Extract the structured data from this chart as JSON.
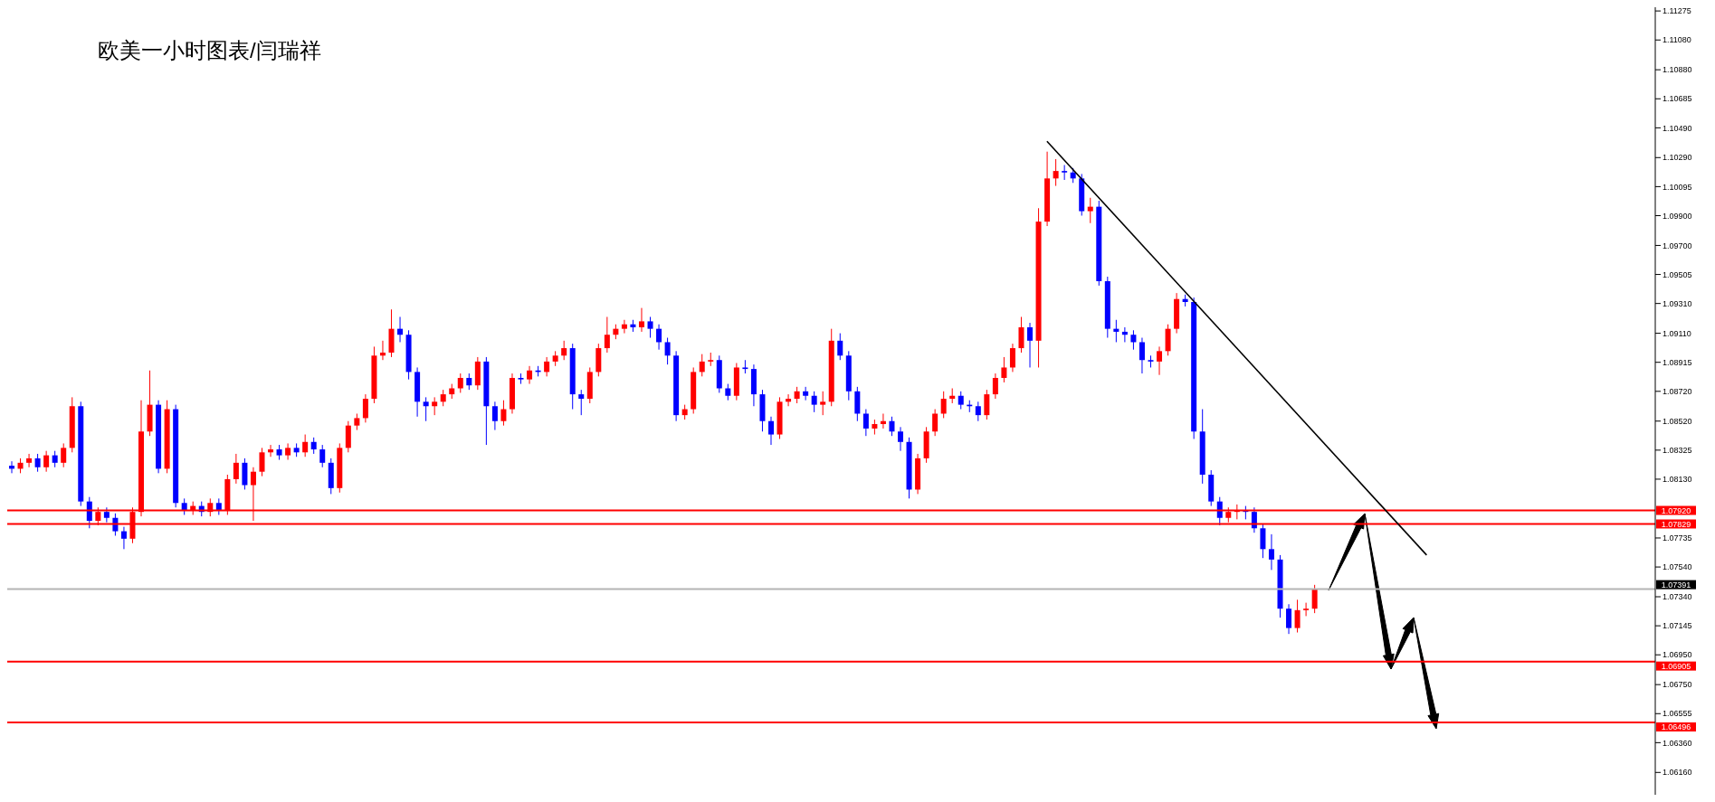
{
  "chart_data": {
    "type": "candlestick",
    "title": "欧美一小时图表/闫瑞祥",
    "categories": [
      null,
      null,
      null,
      null,
      null,
      null,
      null,
      null,
      null,
      null,
      null,
      null,
      null,
      null,
      null,
      null,
      null,
      null,
      null,
      null,
      null,
      null,
      null,
      null,
      null,
      null,
      null,
      null,
      null,
      null,
      null,
      null,
      null,
      null,
      null,
      null,
      null,
      null,
      null,
      null,
      null,
      null,
      null,
      null,
      null,
      null,
      null,
      null,
      null,
      null,
      null,
      null,
      null,
      null,
      null,
      null,
      null,
      null,
      null,
      null,
      null,
      null,
      null,
      null,
      null,
      null,
      null,
      null,
      null,
      null,
      null,
      null,
      null,
      null,
      null,
      null,
      null,
      null,
      null,
      null,
      null,
      null,
      null,
      null,
      null,
      null,
      null,
      null,
      null,
      null,
      null,
      null,
      null,
      null,
      null,
      null,
      null,
      null,
      null,
      null,
      null,
      null,
      null,
      null,
      null,
      null,
      null,
      null,
      null,
      null,
      null,
      null,
      null,
      null,
      null,
      null,
      null,
      null,
      null,
      null,
      null,
      null,
      null,
      null,
      null,
      null,
      null,
      null,
      null,
      null,
      null,
      null,
      null,
      null,
      null,
      null,
      null,
      null,
      null,
      null,
      null,
      null,
      null,
      null,
      null,
      null,
      null,
      null,
      null,
      null,
      null,
      null,
      null,
      null,
      null,
      null,
      null,
      null,
      null,
      null,
      null,
      null,
      null,
      null,
      null,
      null,
      null,
      null,
      null,
      null,
      null,
      null,
      null,
      null,
      null,
      null,
      null,
      null,
      null,
      null,
      null,
      null,
      null,
      null,
      null,
      null,
      null,
      null,
      null,
      null,
      null
    ],
    "ohlc": [
      [
        1.0822,
        1.0825,
        1.0817,
        1.082
      ],
      [
        1.082,
        1.0827,
        1.0817,
        1.0824
      ],
      [
        1.0824,
        1.083,
        1.0821,
        1.0827
      ],
      [
        1.0827,
        1.083,
        1.0818,
        1.0821
      ],
      [
        1.0821,
        1.0832,
        1.0818,
        1.0829
      ],
      [
        1.0829,
        1.0832,
        1.0821,
        1.0824
      ],
      [
        1.0824,
        1.0837,
        1.0821,
        1.0834
      ],
      [
        1.0834,
        1.0868,
        1.0831,
        1.0862
      ],
      [
        1.0862,
        1.0865,
        1.0795,
        1.0798
      ],
      [
        1.0798,
        1.0801,
        1.078,
        1.0785
      ],
      [
        1.0785,
        1.0794,
        1.0782,
        1.0791
      ],
      [
        1.0791,
        1.0794,
        1.0784,
        1.0787
      ],
      [
        1.0787,
        1.079,
        1.0775,
        1.0778
      ],
      [
        1.0778,
        1.0781,
        1.0766,
        1.0773
      ],
      [
        1.0773,
        1.0794,
        1.077,
        1.0791
      ],
      [
        1.0791,
        1.0866,
        1.0788,
        1.0845
      ],
      [
        1.0845,
        1.0886,
        1.0842,
        1.0863
      ],
      [
        1.0863,
        1.0866,
        1.0817,
        1.082
      ],
      [
        1.082,
        1.0866,
        1.0817,
        1.086
      ],
      [
        1.086,
        1.0863,
        1.0794,
        1.0797
      ],
      [
        1.0797,
        1.08,
        1.0789,
        1.0792
      ],
      [
        1.0792,
        1.0798,
        1.0789,
        1.0795
      ],
      [
        1.0795,
        1.0798,
        1.0788,
        1.0791
      ],
      [
        1.0791,
        1.08,
        1.0788,
        1.0797
      ],
      [
        1.0797,
        1.08,
        1.0789,
        1.0792
      ],
      [
        1.0792,
        1.0816,
        1.0789,
        1.0813
      ],
      [
        1.0813,
        1.083,
        1.081,
        1.0824
      ],
      [
        1.0824,
        1.0827,
        1.0806,
        1.0809
      ],
      [
        1.0809,
        1.0821,
        1.0785,
        1.0818
      ],
      [
        1.0818,
        1.0834,
        1.0815,
        1.0831
      ],
      [
        1.0831,
        1.0836,
        1.0828,
        1.0833
      ],
      [
        1.0833,
        1.0836,
        1.0826,
        1.0829
      ],
      [
        1.0829,
        1.0837,
        1.0826,
        1.0834
      ],
      [
        1.0834,
        1.0837,
        1.0828,
        1.0831
      ],
      [
        1.0831,
        1.0843,
        1.0828,
        1.0838
      ],
      [
        1.0838,
        1.0841,
        1.083,
        1.0833
      ],
      [
        1.0833,
        1.0836,
        1.0821,
        1.0824
      ],
      [
        1.0824,
        1.0827,
        1.0803,
        1.0807
      ],
      [
        1.0807,
        1.0837,
        1.0804,
        1.0834
      ],
      [
        1.0834,
        1.0852,
        1.0831,
        1.0849
      ],
      [
        1.0849,
        1.0857,
        1.0846,
        1.0854
      ],
      [
        1.0854,
        1.087,
        1.0851,
        1.0867
      ],
      [
        1.0867,
        1.0902,
        1.0864,
        1.0896
      ],
      [
        1.0896,
        1.0906,
        1.0893,
        1.0898
      ],
      [
        1.0898,
        1.0927,
        1.0895,
        1.0914
      ],
      [
        1.0914,
        1.0922,
        1.0905,
        1.091
      ],
      [
        1.091,
        1.0913,
        1.088,
        1.0885
      ],
      [
        1.0885,
        1.0888,
        1.0855,
        1.0865
      ],
      [
        1.0865,
        1.0868,
        1.0852,
        1.0862
      ],
      [
        1.0862,
        1.0868,
        1.0856,
        1.0865
      ],
      [
        1.0865,
        1.0873,
        1.0862,
        1.087
      ],
      [
        1.087,
        1.0877,
        1.0867,
        1.0874
      ],
      [
        1.0874,
        1.0884,
        1.0871,
        1.0881
      ],
      [
        1.0881,
        1.0884,
        1.0873,
        1.0876
      ],
      [
        1.0876,
        1.0895,
        1.0873,
        1.0892
      ],
      [
        1.0892,
        1.0895,
        1.0836,
        1.0862
      ],
      [
        1.0862,
        1.0865,
        1.0846,
        1.0852
      ],
      [
        1.0852,
        1.0866,
        1.0849,
        1.086
      ],
      [
        1.086,
        1.0884,
        1.0857,
        1.0881
      ],
      [
        1.0881,
        1.0884,
        1.0877,
        1.088
      ],
      [
        1.088,
        1.0889,
        1.0877,
        1.0886
      ],
      [
        1.0886,
        1.0889,
        1.0882,
        1.0885
      ],
      [
        1.0885,
        1.0895,
        1.0882,
        1.0892
      ],
      [
        1.0892,
        1.0899,
        1.0889,
        1.0896
      ],
      [
        1.0896,
        1.0906,
        1.0893,
        1.0901
      ],
      [
        1.0901,
        1.0904,
        1.086,
        1.087
      ],
      [
        1.087,
        1.0873,
        1.0856,
        1.0867
      ],
      [
        1.0867,
        1.0888,
        1.0864,
        1.0885
      ],
      [
        1.0885,
        1.0904,
        1.0882,
        1.0901
      ],
      [
        1.0901,
        1.0922,
        1.0898,
        1.091
      ],
      [
        1.091,
        1.0917,
        1.0907,
        1.0914
      ],
      [
        1.0914,
        1.092,
        1.0911,
        1.0917
      ],
      [
        1.0917,
        1.092,
        1.0912,
        1.0915
      ],
      [
        1.0915,
        1.0928,
        1.0912,
        1.0919
      ],
      [
        1.0919,
        1.0922,
        1.0908,
        1.0914
      ],
      [
        1.0914,
        1.0917,
        1.09,
        1.0905
      ],
      [
        1.0905,
        1.0908,
        1.089,
        1.0896
      ],
      [
        1.0896,
        1.0899,
        1.0852,
        1.0856
      ],
      [
        1.0856,
        1.0863,
        1.0853,
        1.086
      ],
      [
        1.086,
        1.0888,
        1.0857,
        1.0885
      ],
      [
        1.0885,
        1.0897,
        1.0882,
        1.0892
      ],
      [
        1.0892,
        1.0898,
        1.0889,
        1.0893
      ],
      [
        1.0893,
        1.0896,
        1.0871,
        1.0874
      ],
      [
        1.0874,
        1.0877,
        1.0866,
        1.0869
      ],
      [
        1.0869,
        1.0891,
        1.0866,
        1.0888
      ],
      [
        1.0888,
        1.0893,
        1.0884,
        1.0887
      ],
      [
        1.0887,
        1.089,
        1.0862,
        1.087
      ],
      [
        1.087,
        1.0873,
        1.0845,
        1.0852
      ],
      [
        1.0852,
        1.0855,
        1.0836,
        1.0843
      ],
      [
        1.0843,
        1.0868,
        1.084,
        1.0865
      ],
      [
        1.0865,
        1.087,
        1.0862,
        1.0867
      ],
      [
        1.0867,
        1.0875,
        1.0864,
        1.0872
      ],
      [
        1.0872,
        1.0875,
        1.0866,
        1.0869
      ],
      [
        1.0869,
        1.0872,
        1.0858,
        1.0863
      ],
      [
        1.0863,
        1.0872,
        1.0856,
        1.0865
      ],
      [
        1.0865,
        1.0914,
        1.0862,
        1.0906
      ],
      [
        1.0906,
        1.0911,
        1.0893,
        1.0896
      ],
      [
        1.0896,
        1.0899,
        1.0866,
        1.0872
      ],
      [
        1.0872,
        1.0875,
        1.0852,
        1.0857
      ],
      [
        1.0857,
        1.086,
        1.0842,
        1.0847
      ],
      [
        1.0847,
        1.0853,
        1.0843,
        1.085
      ],
      [
        1.085,
        1.0857,
        1.0847,
        1.0852
      ],
      [
        1.0852,
        1.0855,
        1.0842,
        1.0845
      ],
      [
        1.0845,
        1.0848,
        1.0832,
        1.0838
      ],
      [
        1.0838,
        1.0841,
        1.08,
        1.0806
      ],
      [
        1.0806,
        1.083,
        1.0803,
        1.0827
      ],
      [
        1.0827,
        1.0848,
        1.0824,
        1.0845
      ],
      [
        1.0845,
        1.086,
        1.0842,
        1.0857
      ],
      [
        1.0857,
        1.0872,
        1.0854,
        1.0867
      ],
      [
        1.0867,
        1.0874,
        1.0864,
        1.0869
      ],
      [
        1.0869,
        1.0872,
        1.086,
        1.0863
      ],
      [
        1.0863,
        1.0866,
        1.0858,
        1.0862
      ],
      [
        1.0862,
        1.0865,
        1.0852,
        1.0856
      ],
      [
        1.0856,
        1.0873,
        1.0853,
        1.087
      ],
      [
        1.087,
        1.0884,
        1.0867,
        1.0881
      ],
      [
        1.0881,
        1.0895,
        1.0878,
        1.0888
      ],
      [
        1.0888,
        1.0904,
        1.0885,
        1.0901
      ],
      [
        1.0901,
        1.0922,
        1.0898,
        1.0915
      ],
      [
        1.0915,
        1.0918,
        1.0888,
        1.0906
      ],
      [
        1.0906,
        1.0995,
        1.0888,
        1.0986
      ],
      [
        1.0986,
        1.1033,
        1.0983,
        1.1015
      ],
      [
        1.1015,
        1.1028,
        1.101,
        1.102
      ],
      [
        1.102,
        1.1024,
        1.1014,
        1.1019
      ],
      [
        1.1019,
        1.1022,
        1.1012,
        1.1015
      ],
      [
        1.1015,
        1.1018,
        1.099,
        1.0993
      ],
      [
        1.0993,
        1.1002,
        1.0985,
        1.0996
      ],
      [
        1.0996,
        1.1,
        1.0943,
        1.0946
      ],
      [
        1.0946,
        1.0949,
        1.0908,
        1.0914
      ],
      [
        1.0914,
        1.092,
        1.0905,
        1.0912
      ],
      [
        1.0912,
        1.0915,
        1.0905,
        1.091
      ],
      [
        1.091,
        1.0913,
        1.09,
        1.0905
      ],
      [
        1.0905,
        1.0908,
        1.0884,
        1.0893
      ],
      [
        1.0893,
        1.0896,
        1.0888,
        1.0892
      ],
      [
        1.0892,
        1.0902,
        1.0883,
        1.0899
      ],
      [
        1.0899,
        1.0917,
        1.0896,
        1.0914
      ],
      [
        1.0914,
        1.0938,
        1.0911,
        1.0934
      ],
      [
        1.0934,
        1.0937,
        1.0929,
        1.0932
      ],
      [
        1.0932,
        1.0935,
        1.084,
        1.0845
      ],
      [
        1.0845,
        1.086,
        1.081,
        1.0816
      ],
      [
        1.0816,
        1.0819,
        1.0795,
        1.0798
      ],
      [
        1.0798,
        1.0801,
        1.0782,
        1.0787
      ],
      [
        1.0787,
        1.0794,
        1.0784,
        1.0791
      ],
      [
        1.0791,
        1.0796,
        1.0786,
        1.0792
      ],
      [
        1.0792,
        1.0795,
        1.0786,
        1.0791
      ],
      [
        1.0791,
        1.0794,
        1.0777,
        1.078
      ],
      [
        1.078,
        1.0783,
        1.076,
        1.0766
      ],
      [
        1.0766,
        1.0776,
        1.0752,
        1.0759
      ],
      [
        1.0759,
        1.0762,
        1.072,
        1.0726
      ],
      [
        1.0726,
        1.0729,
        1.0709,
        1.0713
      ],
      [
        1.0713,
        1.0732,
        1.071,
        1.0725
      ],
      [
        1.0725,
        1.073,
        1.0721,
        1.0726
      ],
      [
        1.0726,
        1.0742,
        1.0723,
        1.0739
      ],
      null,
      null,
      null,
      null,
      null,
      null,
      null,
      null,
      null,
      null,
      null,
      null,
      null,
      null,
      null,
      null,
      null,
      null,
      null,
      null,
      null,
      null,
      null,
      null,
      null,
      null,
      null,
      null,
      null,
      null,
      null,
      null,
      null,
      null,
      null,
      null,
      null,
      null,
      null
    ],
    "colors": [
      "#0000ff",
      "#ff0000",
      "#ff0000",
      "#0000ff",
      "#ff0000",
      "#0000ff",
      "#ff0000",
      "#ff0000",
      "#0000ff",
      "#0000ff",
      "#ff0000",
      "#0000ff",
      "#0000ff",
      "#0000ff",
      "#ff0000",
      "#ff0000",
      "#ff0000",
      "#0000ff",
      "#ff0000",
      "#0000ff",
      "#0000ff",
      "#ff0000",
      "#0000ff",
      "#ff0000",
      "#0000ff",
      "#ff0000",
      "#ff0000",
      "#0000ff",
      "#ff0000",
      "#ff0000",
      "#ff0000",
      "#0000ff",
      "#ff0000",
      "#0000ff",
      "#ff0000",
      "#0000ff",
      "#0000ff",
      "#0000ff",
      "#ff0000",
      "#ff0000",
      "#ff0000",
      "#ff0000",
      "#ff0000",
      "#ff0000",
      "#ff0000",
      "#0000ff",
      "#0000ff",
      "#0000ff",
      "#0000ff",
      "#ff0000",
      "#ff0000",
      "#ff0000",
      "#ff0000",
      "#0000ff",
      "#ff0000",
      "#0000ff",
      "#0000ff",
      "#ff0000",
      "#ff0000",
      "#0000ff",
      "#ff0000",
      "#0000ff",
      "#ff0000",
      "#ff0000",
      "#ff0000",
      "#0000ff",
      "#0000ff",
      "#ff0000",
      "#ff0000",
      "#ff0000",
      "#ff0000",
      "#ff0000",
      "#0000ff",
      "#ff0000",
      "#0000ff",
      "#0000ff",
      "#0000ff",
      "#0000ff",
      "#ff0000",
      "#ff0000",
      "#ff0000",
      "#ff0000",
      "#0000ff",
      "#0000ff",
      "#ff0000",
      "#0000ff",
      "#0000ff",
      "#0000ff",
      "#0000ff",
      "#ff0000",
      "#ff0000",
      "#ff0000",
      "#0000ff",
      "#0000ff",
      "#ff0000",
      "#ff0000",
      "#0000ff",
      "#0000ff",
      "#0000ff",
      "#0000ff",
      "#ff0000",
      "#ff0000",
      "#0000ff",
      "#0000ff",
      "#0000ff",
      "#ff0000",
      "#ff0000",
      "#ff0000",
      "#ff0000",
      "#ff0000",
      "#0000ff",
      "#0000ff",
      "#0000ff",
      "#ff0000",
      "#ff0000",
      "#ff0000",
      "#ff0000",
      "#ff0000",
      "#0000ff",
      "#ff0000",
      "#ff0000",
      "#ff0000",
      "#0000ff",
      "#0000ff",
      "#0000ff",
      "#ff0000",
      "#0000ff",
      "#0000ff",
      "#0000ff",
      "#0000ff",
      "#0000ff",
      "#0000ff",
      "#0000ff",
      "#ff0000",
      "#ff0000",
      "#ff0000",
      "#0000ff",
      "#0000ff",
      "#0000ff",
      "#0000ff",
      "#0000ff",
      "#ff0000",
      "#ff0000",
      "#0000ff",
      "#0000ff",
      "#0000ff",
      "#0000ff",
      "#0000ff",
      "#0000ff",
      "#ff0000",
      "#ff0000",
      "#ff0000",
      null,
      null,
      null,
      null,
      null,
      null,
      null,
      null,
      null,
      null,
      null,
      null,
      null,
      null,
      null,
      null,
      null,
      null,
      null,
      null,
      null,
      null,
      null,
      null,
      null,
      null,
      null,
      null,
      null,
      null,
      null,
      null,
      null,
      null,
      null,
      null,
      null,
      null,
      null
    ],
    "series": [
      {
        "type": "line",
        "color": "#000000",
        "values": [
          null,
          null,
          null,
          null,
          null,
          null,
          null,
          null,
          null,
          null,
          null,
          null,
          null,
          null,
          null,
          null,
          null,
          null,
          null,
          null,
          null,
          null,
          null,
          null,
          null,
          null,
          null,
          null,
          null,
          null,
          null,
          null,
          null,
          null,
          null,
          null,
          null,
          null,
          null,
          null,
          null,
          null,
          null,
          null,
          null,
          null,
          null,
          null,
          null,
          null,
          null,
          null,
          null,
          null,
          null,
          null,
          null,
          null,
          null,
          null,
          null,
          null,
          null,
          null,
          null,
          null,
          null,
          null,
          null,
          null,
          null,
          null,
          null,
          null,
          null,
          null,
          null,
          null,
          null,
          null,
          null,
          null,
          null,
          null,
          null,
          null,
          null,
          null,
          null,
          null,
          null,
          null,
          null,
          null,
          null,
          null,
          null,
          null,
          null,
          null,
          null,
          null,
          null,
          null,
          null,
          null,
          null,
          null,
          null,
          null,
          null,
          null,
          null,
          null,
          null,
          null,
          null,
          null,
          null,
          null,
          1.104,
          null,
          null,
          null,
          null,
          null,
          null,
          null,
          null,
          null,
          null,
          null,
          null,
          null,
          null,
          null,
          null,
          null,
          null,
          null,
          null,
          null,
          null,
          null,
          null,
          null,
          null,
          null,
          null,
          null,
          null,
          null,
          null,
          null,
          null,
          null,
          null,
          null,
          null,
          null,
          null,
          null,
          null,
          null,
          1.0762,
          null,
          null,
          null,
          null,
          null,
          null,
          null,
          null,
          null,
          null,
          null,
          null,
          null,
          null,
          null,
          null,
          null,
          null,
          null,
          null,
          null,
          null,
          null,
          null,
          null,
          null
        ]
      }
    ],
    "ylim": [
      1.0601,
      1.113
    ],
    "yticks": [
      1.11275,
      {
        "value": 1.1108,
        "label": "1.11080"
      },
      {
        "value": 1.1088,
        "label": "1.10880"
      },
      1.10685,
      {
        "value": 1.1049,
        "label": "1.10490"
      },
      {
        "value": 1.1029,
        "label": "1.10290"
      },
      1.10095,
      {
        "value": 1.099,
        "label": "1.09900"
      },
      {
        "value": 1.097,
        "label": "1.09700"
      },
      1.09505,
      {
        "value": 1.0931,
        "label": "1.09310"
      },
      {
        "value": 1.0911,
        "label": "1.09110"
      },
      1.08915,
      {
        "value": 1.0872,
        "label": "1.08720"
      },
      {
        "value": 1.0852,
        "label": "1.08520"
      },
      1.08325,
      {
        "value": 1.0813,
        "label": "1.08130"
      },
      1.07735,
      {
        "value": 1.0754,
        "label": "1.07540"
      },
      {
        "value": 1.0734,
        "label": "1.07340"
      },
      1.07145,
      {
        "value": 1.0695,
        "label": "1.06950"
      },
      {
        "value": 1.0675,
        "label": "1.06750"
      },
      1.06555,
      {
        "value": 1.0636,
        "label": "1.06360"
      },
      {
        "value": 1.0616,
        "label": "1.06160"
      }
    ],
    "ref_lines": [
      {
        "axis": "y",
        "value": 1.0792,
        "label": "1.07920",
        "color": "#ff0000"
      },
      {
        "axis": "y",
        "value": 1.07829,
        "label": "1.07829",
        "color": "#ff0000"
      },
      {
        "axis": "y",
        "value": 1.07391,
        "label": "1.07391",
        "color": "#b4b4b4"
      },
      {
        "axis": "y",
        "value": 1.06905,
        "label": "1.06905",
        "color": "#ff0000"
      },
      {
        "axis": "y",
        "value": 1.06496,
        "label": "1.06496",
        "color": "#ff0000"
      }
    ],
    "tick_labels": "y"
  }
}
